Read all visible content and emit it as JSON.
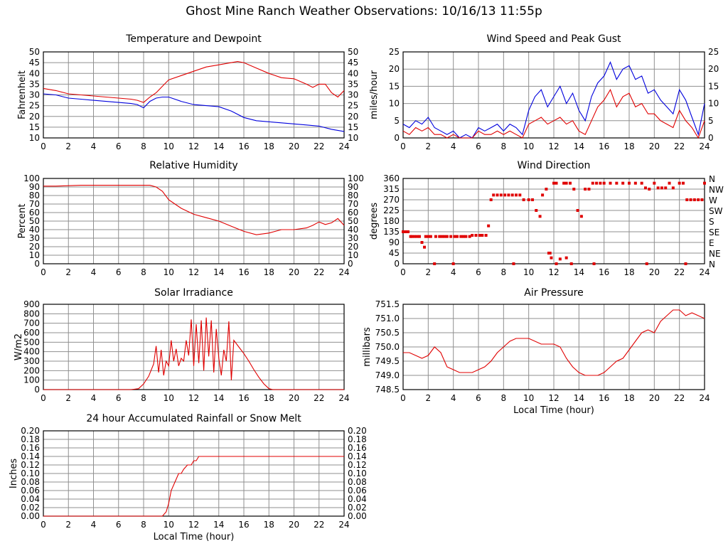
{
  "page": {
    "title": "Ghost Mine Ranch Weather Observations: 10/16/13 11:55p"
  },
  "colors": {
    "red": "#e00000",
    "blue": "#0000dd",
    "grid": "#8f8f8f",
    "frame": "#000000"
  },
  "chart_data": [
    {
      "id": "temp",
      "type": "line",
      "title": "Temperature and Dewpoint",
      "xlabel": "",
      "ylabel": "Fahrenheit",
      "ylim": [
        10,
        50
      ],
      "xlim": [
        0,
        24
      ],
      "xticks": [
        "0",
        "2",
        "4",
        "6",
        "8",
        "10",
        "12",
        "14",
        "16",
        "18",
        "20",
        "22",
        "24"
      ],
      "yticks": [
        "10",
        "15",
        "20",
        "25",
        "30",
        "35",
        "40",
        "45",
        "50"
      ],
      "right_ticks": true,
      "series": [
        {
          "name": "Temperature",
          "color": "red",
          "x": [
            0,
            1,
            2,
            3,
            4,
            5,
            6,
            7,
            7.5,
            8,
            8.5,
            9,
            9.5,
            10,
            11,
            12,
            13,
            14,
            15,
            15.5,
            16,
            17,
            18,
            19,
            20,
            21,
            21.5,
            22,
            22.5,
            23,
            23.5,
            24
          ],
          "y": [
            33,
            32,
            30.5,
            30,
            29.5,
            29,
            28.5,
            28,
            27.5,
            26.5,
            29,
            31,
            34,
            37,
            39,
            41,
            43,
            44,
            45,
            45.5,
            45,
            42.5,
            40,
            38,
            37.5,
            35,
            33.5,
            35,
            35,
            31,
            29,
            32
          ]
        },
        {
          "name": "Dewpoint",
          "color": "blue",
          "x": [
            0,
            1,
            2,
            3,
            4,
            5,
            6,
            7,
            7.5,
            8,
            8.5,
            9,
            9.5,
            10,
            11,
            12,
            13,
            14,
            15,
            16,
            17,
            18,
            19,
            20,
            21,
            22,
            23,
            24
          ],
          "y": [
            30.5,
            30,
            28.5,
            28,
            27.5,
            27,
            26.5,
            26,
            25.5,
            24,
            27,
            28.5,
            29,
            29,
            27,
            25.5,
            25,
            24.5,
            22.5,
            19.5,
            18,
            17.5,
            17,
            16.5,
            16,
            15.5,
            14,
            13
          ]
        }
      ]
    },
    {
      "id": "wind",
      "type": "line",
      "title": "Wind Speed and Peak Gust",
      "xlabel": "",
      "ylabel": "miles/hour",
      "ylim": [
        0,
        25
      ],
      "xlim": [
        0,
        24
      ],
      "xticks": [
        "0",
        "2",
        "4",
        "6",
        "8",
        "10",
        "12",
        "14",
        "16",
        "18",
        "20",
        "22",
        "24"
      ],
      "yticks": [
        "0",
        "5",
        "10",
        "15",
        "20",
        "25"
      ],
      "right_ticks": true,
      "series": [
        {
          "name": "Peak Gust",
          "color": "blue",
          "x": [
            0,
            0.5,
            1,
            1.5,
            2,
            2.5,
            3,
            3.5,
            4,
            4.5,
            5,
            5.5,
            6,
            6.5,
            7,
            7.5,
            8,
            8.5,
            9,
            9.5,
            10,
            10.5,
            11,
            11.5,
            12,
            12.5,
            13,
            13.5,
            14,
            14.5,
            15,
            15.5,
            16,
            16.5,
            17,
            17.5,
            18,
            18.5,
            19,
            19.5,
            20,
            20.5,
            21,
            21.5,
            22,
            22.5,
            23,
            23.5,
            24
          ],
          "y": [
            4,
            3,
            5,
            4,
            6,
            3,
            2,
            1,
            2,
            0,
            1,
            0,
            3,
            2,
            3,
            4,
            2,
            4,
            3,
            1,
            8,
            12,
            14,
            9,
            12,
            15,
            10,
            13,
            8,
            5,
            12,
            16,
            18,
            22,
            17,
            20,
            21,
            17,
            18,
            13,
            14,
            11,
            9,
            7,
            14,
            11,
            6,
            1,
            10
          ]
        },
        {
          "name": "Wind Speed",
          "color": "red",
          "x": [
            0,
            0.5,
            1,
            1.5,
            2,
            2.5,
            3,
            3.5,
            4,
            4.5,
            5,
            5.5,
            6,
            6.5,
            7,
            7.5,
            8,
            8.5,
            9,
            9.5,
            10,
            10.5,
            11,
            11.5,
            12,
            12.5,
            13,
            13.5,
            14,
            14.5,
            15,
            15.5,
            16,
            16.5,
            17,
            17.5,
            18,
            18.5,
            19,
            19.5,
            20,
            20.5,
            21,
            21.5,
            22,
            22.5,
            23,
            23.5,
            24
          ],
          "y": [
            2,
            1,
            3,
            2,
            3,
            1,
            1,
            0,
            1,
            0,
            0,
            0,
            2,
            1,
            1,
            2,
            1,
            2,
            1,
            0,
            4,
            5,
            6,
            4,
            5,
            6,
            4,
            5,
            2,
            1,
            5,
            9,
            11,
            14,
            9,
            12,
            13,
            9,
            10,
            7,
            7,
            5,
            4,
            3,
            8,
            5,
            3,
            0,
            5
          ]
        }
      ]
    },
    {
      "id": "rh",
      "type": "line",
      "title": "Relative Humidity",
      "xlabel": "",
      "ylabel": "Percent",
      "ylim": [
        0,
        100
      ],
      "xlim": [
        0,
        24
      ],
      "xticks": [
        "0",
        "2",
        "4",
        "6",
        "8",
        "10",
        "12",
        "14",
        "16",
        "18",
        "20",
        "22",
        "24"
      ],
      "yticks": [
        "0",
        "10",
        "20",
        "30",
        "40",
        "50",
        "60",
        "70",
        "80",
        "90",
        "100"
      ],
      "right_ticks": true,
      "series": [
        {
          "name": "Relative Humidity",
          "color": "red",
          "x": [
            0,
            1,
            2,
            3,
            4,
            5,
            6,
            7,
            8,
            8.5,
            9,
            9.5,
            10,
            10.5,
            11,
            12,
            13,
            14,
            15,
            16,
            17,
            18,
            19,
            20,
            21,
            21.5,
            22,
            22.5,
            23,
            23.5,
            24
          ],
          "y": [
            91,
            91,
            91.5,
            92,
            92,
            92,
            92,
            92,
            92,
            92,
            90,
            85,
            75,
            70,
            65,
            58,
            54,
            50,
            44,
            38,
            34,
            36,
            40,
            40,
            42,
            45,
            49,
            46,
            48,
            53,
            45
          ]
        }
      ]
    },
    {
      "id": "winddir",
      "type": "scatter",
      "title": "Wind Direction",
      "xlabel": "",
      "ylabel": "degrees",
      "ylim": [
        0,
        360
      ],
      "xlim": [
        0,
        24
      ],
      "xticks": [
        "0",
        "2",
        "4",
        "6",
        "8",
        "10",
        "12",
        "14",
        "16",
        "18",
        "20",
        "22",
        "24"
      ],
      "yticks": [
        "0",
        "45",
        "90",
        "135",
        "180",
        "225",
        "270",
        "315",
        "360"
      ],
      "compass": [
        "N",
        "NE",
        "E",
        "SE",
        "S",
        "SW",
        "W",
        "NW",
        "N"
      ],
      "series": [
        {
          "name": "Wind Direction",
          "color": "red",
          "x": [
            0,
            0.2,
            0.4,
            0.6,
            0.7,
            0.9,
            1.1,
            1.3,
            1.5,
            1.7,
            1.8,
            2.0,
            2.2,
            2.6,
            2.9,
            3.1,
            3.3,
            3.5,
            3.8,
            4.1,
            4.3,
            4.6,
            4.8,
            5.0,
            5.3,
            5.5,
            5.8,
            6.1,
            6.3,
            6.6,
            6.8,
            7.0,
            7.2,
            7.5,
            7.8,
            8.1,
            8.4,
            8.7,
            9.0,
            9.3,
            9.6,
            10.0,
            10.3,
            10.6,
            10.9,
            11.1,
            11.4,
            11.6,
            11.8,
            12.0,
            12.2,
            12.5,
            12.8,
            13.0,
            13.3,
            13.6,
            13.9,
            14.2,
            14.5,
            14.8,
            15.1,
            15.4,
            15.7,
            16.0,
            16.5,
            17.0,
            17.5,
            18.0,
            18.5,
            19.0,
            19.3,
            19.6,
            20.0,
            20.3,
            20.6,
            20.9,
            21.2,
            21.5,
            22.0,
            22.3,
            22.6,
            22.9,
            23.2,
            23.5,
            23.8,
            24.0,
            2.5,
            4.0,
            8.8,
            11.7,
            12.2,
            13.0,
            13.4,
            15.2,
            19.4,
            22.5
          ],
          "y": [
            135,
            135,
            135,
            115,
            115,
            115,
            115,
            115,
            90,
            70,
            115,
            115,
            115,
            115,
            115,
            115,
            115,
            115,
            115,
            115,
            115,
            115,
            115,
            115,
            115,
            120,
            120,
            120,
            120,
            120,
            160,
            270,
            290,
            290,
            290,
            290,
            290,
            290,
            290,
            290,
            270,
            270,
            270,
            225,
            200,
            290,
            315,
            45,
            25,
            340,
            340,
            20,
            340,
            340,
            340,
            315,
            225,
            200,
            315,
            315,
            340,
            340,
            340,
            340,
            340,
            340,
            340,
            340,
            340,
            340,
            320,
            315,
            340,
            320,
            320,
            320,
            340,
            320,
            340,
            340,
            270,
            270,
            270,
            270,
            270,
            340,
            0,
            0,
            0,
            45,
            0,
            25,
            0,
            0,
            0,
            0
          ]
        }
      ]
    },
    {
      "id": "solar",
      "type": "line",
      "title": "Solar Irradiance",
      "xlabel": "",
      "ylabel": "W/m2",
      "ylim": [
        0,
        900
      ],
      "xlim": [
        0,
        24
      ],
      "xticks": [
        "0",
        "2",
        "4",
        "6",
        "8",
        "10",
        "12",
        "14",
        "16",
        "18",
        "20",
        "22",
        "24"
      ],
      "yticks": [
        "0",
        "100",
        "200",
        "300",
        "400",
        "500",
        "600",
        "700",
        "800",
        "900"
      ],
      "right_ticks": false,
      "series": [
        {
          "name": "Solar Irradiance",
          "color": "red",
          "x": [
            0,
            7,
            7.6,
            8,
            8.4,
            8.8,
            9,
            9.2,
            9.4,
            9.6,
            9.8,
            10,
            10.2,
            10.4,
            10.6,
            10.8,
            11,
            11.2,
            11.4,
            11.6,
            11.8,
            12,
            12.2,
            12.4,
            12.6,
            12.8,
            13,
            13.2,
            13.4,
            13.6,
            13.8,
            14,
            14.2,
            14.4,
            14.6,
            14.8,
            15,
            15.2,
            15.6,
            16,
            16.4,
            16.8,
            17.2,
            17.6,
            18,
            18.3,
            24
          ],
          "y": [
            0,
            0,
            10,
            60,
            140,
            270,
            460,
            180,
            420,
            150,
            300,
            250,
            520,
            300,
            430,
            250,
            330,
            300,
            520,
            360,
            740,
            250,
            690,
            280,
            730,
            200,
            760,
            350,
            730,
            180,
            640,
            330,
            150,
            420,
            300,
            720,
            100,
            520,
            450,
            380,
            300,
            210,
            130,
            60,
            10,
            0,
            0
          ]
        }
      ]
    },
    {
      "id": "pressure",
      "type": "line",
      "title": "Air Pressure",
      "xlabel": "Local Time (hour)",
      "ylabel": "millibars",
      "ylim": [
        748.5,
        751.5
      ],
      "xlim": [
        0,
        24
      ],
      "xticks": [
        "0",
        "2",
        "4",
        "6",
        "8",
        "10",
        "12",
        "14",
        "16",
        "18",
        "20",
        "22",
        "24"
      ],
      "yticks": [
        "748.5",
        "749.0",
        "749.5",
        "750.0",
        "750.5",
        "751.0",
        "751.5"
      ],
      "right_ticks": false,
      "series": [
        {
          "name": "Air Pressure",
          "color": "red",
          "x": [
            0,
            0.5,
            1,
            1.5,
            2,
            2.5,
            3,
            3.5,
            4,
            4.5,
            5,
            5.5,
            6,
            6.5,
            7,
            7.5,
            8,
            8.5,
            9,
            9.5,
            10,
            11,
            12,
            12.5,
            13,
            13.5,
            14,
            14.5,
            15,
            15.5,
            16,
            16.5,
            17,
            17.5,
            18,
            18.5,
            19,
            19.5,
            20,
            20.5,
            21,
            21.5,
            22,
            22.5,
            23,
            23.5,
            24
          ],
          "y": [
            749.8,
            749.8,
            749.7,
            749.6,
            749.7,
            750.0,
            749.8,
            749.3,
            749.2,
            749.1,
            749.1,
            749.1,
            749.2,
            749.3,
            749.5,
            749.8,
            750.0,
            750.2,
            750.3,
            750.3,
            750.3,
            750.1,
            750.1,
            750.0,
            749.6,
            749.3,
            749.1,
            749.0,
            749.0,
            749.0,
            749.1,
            749.3,
            749.5,
            749.6,
            749.9,
            750.2,
            750.5,
            750.6,
            750.5,
            750.9,
            751.1,
            751.3,
            751.3,
            751.1,
            751.2,
            751.1,
            751.0
          ]
        }
      ]
    },
    {
      "id": "rain",
      "type": "line",
      "title": "24 hour Accumulated Rainfall or Snow Melt",
      "xlabel": "Local Time (hour)",
      "ylabel": "Inches",
      "ylim": [
        0,
        0.2
      ],
      "xlim": [
        0,
        24
      ],
      "xticks": [
        "0",
        "2",
        "4",
        "6",
        "8",
        "10",
        "12",
        "14",
        "16",
        "18",
        "20",
        "22",
        "24"
      ],
      "yticks": [
        "0.00",
        "0.02",
        "0.04",
        "0.06",
        "0.08",
        "0.10",
        "0.12",
        "0.14",
        "0.16",
        "0.18",
        "0.20"
      ],
      "right_ticks": true,
      "series": [
        {
          "name": "Accumulated Rainfall",
          "color": "red",
          "x": [
            0,
            9.5,
            9.8,
            10,
            10.2,
            10.5,
            10.8,
            11,
            11.2,
            11.5,
            11.8,
            12,
            12.2,
            12.4,
            12.6,
            24
          ],
          "y": [
            0,
            0,
            0.01,
            0.03,
            0.06,
            0.08,
            0.1,
            0.1,
            0.11,
            0.12,
            0.12,
            0.13,
            0.13,
            0.14,
            0.14,
            0.14
          ]
        }
      ]
    }
  ]
}
